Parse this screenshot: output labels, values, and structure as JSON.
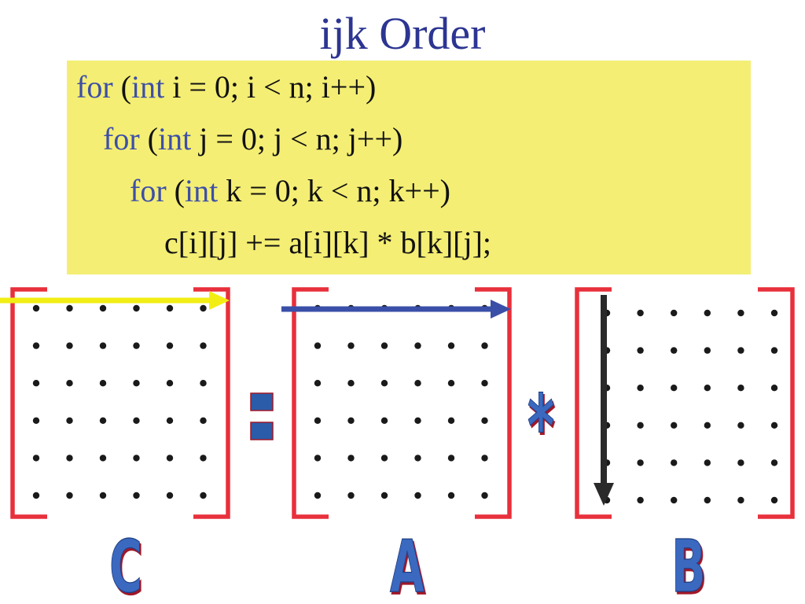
{
  "title": "ijk Order",
  "code": {
    "lines": [
      {
        "kw1": "for",
        "paren": " (",
        "kw2": "int",
        "rest": " i = 0; i < n; i++)"
      },
      {
        "kw1": "for",
        "paren": " (",
        "kw2": "int",
        "rest": " j = 0; j < n; j++)"
      },
      {
        "kw1": "for",
        "paren": " (",
        "kw2": "int",
        "rest": " k = 0; k < n; k++)"
      },
      {
        "body": "c[i][j] += a[i][k] * b[k][j];"
      }
    ]
  },
  "matrices": {
    "c": {
      "label": "C",
      "rows": 6,
      "cols": 6
    },
    "a": {
      "label": "A",
      "rows": 6,
      "cols": 6
    },
    "b": {
      "label": "B",
      "rows": 6,
      "cols": 6
    }
  },
  "operators": {
    "equals": "=",
    "times": "*"
  },
  "colors": {
    "title": "#2c3592",
    "code_bg": "#f4ee74",
    "keyword": "#3d4fa8",
    "bracket": "#e8303c",
    "row_arrow_c": "#f2ee14",
    "row_arrow_a": "#3a4fa8",
    "col_arrow_b": "#2a2a2a",
    "big_letter_fill": "#3a69c0",
    "big_letter_shadow": "#a01828"
  },
  "icons": {
    "c_arrow": "arrow-right-icon",
    "a_arrow": "arrow-right-icon",
    "b_arrow": "arrow-down-icon"
  }
}
